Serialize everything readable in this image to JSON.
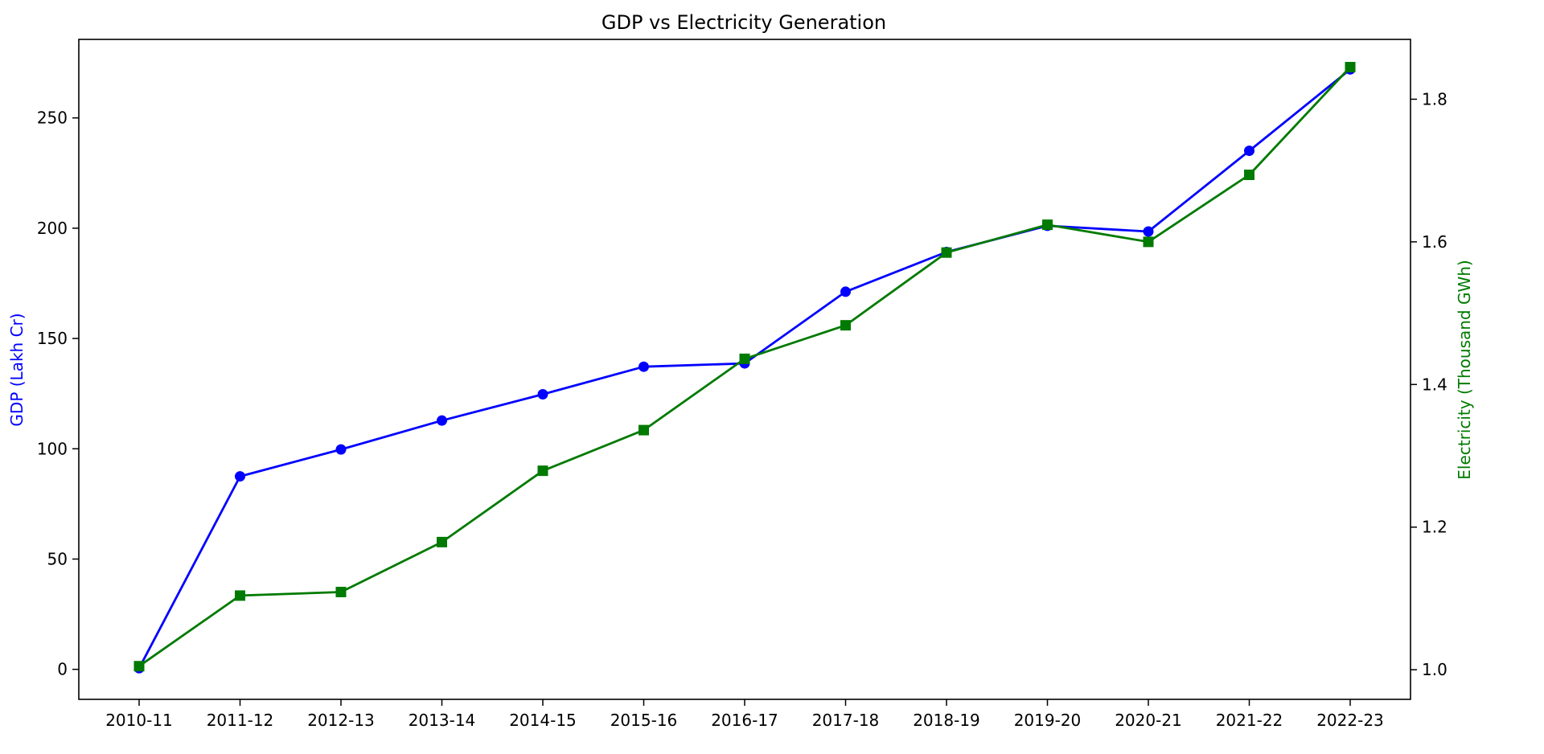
{
  "chart_data": {
    "type": "line",
    "title": "GDP vs Electricity Generation",
    "categories": [
      "2010-11",
      "2011-12",
      "2012-13",
      "2013-14",
      "2014-15",
      "2015-16",
      "2016-17",
      "2017-18",
      "2018-19",
      "2019-20",
      "2020-21",
      "2021-22",
      "2022-23"
    ],
    "y_left": {
      "label": "GDP (Lakh Cr)",
      "color": "#0000ff",
      "ticks": [
        0,
        50,
        100,
        150,
        200,
        250
      ],
      "ylim": [
        -13.6,
        285.6
      ]
    },
    "y_right": {
      "label": "Electricity (Thousand GWh)",
      "color": "#007a00",
      "ticks": [
        1.0,
        1.2,
        1.4,
        1.6,
        1.8
      ],
      "ylim": [
        0.9585,
        1.8839
      ]
    },
    "series": [
      {
        "axis": "left",
        "color": "#0000ff",
        "marker": "circle",
        "values": [
          0.5,
          87.5,
          99.7,
          112.8,
          124.7,
          137.2,
          138.7,
          171.2,
          189.2,
          201.1,
          198.5,
          235.1,
          272.0
        ]
      },
      {
        "axis": "right",
        "color": "#007a00",
        "marker": "square",
        "values": [
          1.005,
          1.104,
          1.109,
          1.179,
          1.279,
          1.336,
          1.436,
          1.483,
          1.585,
          1.624,
          1.6,
          1.694,
          1.845
        ]
      }
    ],
    "grid": false,
    "legend": "none"
  }
}
